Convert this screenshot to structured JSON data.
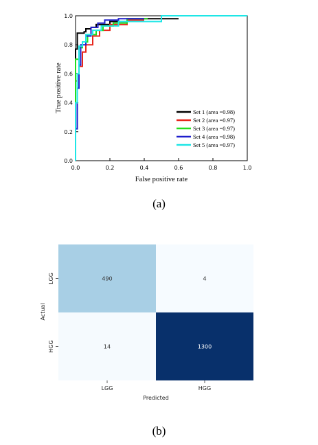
{
  "figures": [
    {
      "caption": "(a)",
      "chart_data": {
        "type": "line",
        "xlabel": "False positive rate",
        "ylabel": "True positive rate",
        "xlim": [
          0.0,
          1.0
        ],
        "ylim": [
          0.0,
          1.0
        ],
        "xticks": [
          "0.0",
          "0.2",
          "0.4",
          "0.6",
          "0.8",
          "1.0"
        ],
        "yticks": [
          "0.0",
          "0.2",
          "0.4",
          "0.6",
          "0.8",
          "1.0"
        ],
        "grid": false,
        "legend_position": "bottom-right",
        "series": [
          {
            "name": "Set 1 (area =0.98)",
            "color": "#000000",
            "x": [
              0.0,
              0.0,
              0.01,
              0.01,
              0.05,
              0.05,
              0.06,
              0.06,
              0.09,
              0.09,
              0.12,
              0.12,
              0.2,
              0.2,
              0.3,
              0.3,
              0.6
            ],
            "y": [
              0.0,
              0.77,
              0.77,
              0.88,
              0.88,
              0.89,
              0.89,
              0.91,
              0.91,
              0.92,
              0.92,
              0.94,
              0.94,
              0.96,
              0.96,
              0.98,
              0.98
            ]
          },
          {
            "name": "Set 2 (area =0.97)",
            "color": "#e8261c",
            "x": [
              0.0,
              0.0,
              0.01,
              0.01,
              0.02,
              0.02,
              0.04,
              0.04,
              0.06,
              0.06,
              0.1,
              0.1,
              0.14,
              0.14,
              0.2,
              0.2,
              0.3,
              0.3,
              0.4
            ],
            "y": [
              0.0,
              0.55,
              0.55,
              0.6,
              0.6,
              0.65,
              0.65,
              0.75,
              0.75,
              0.8,
              0.8,
              0.86,
              0.86,
              0.9,
              0.9,
              0.94,
              0.94,
              0.97,
              0.97
            ]
          },
          {
            "name": "Set 3 (area =0.97)",
            "color": "#22dd1e",
            "x": [
              0.0,
              0.0,
              0.02,
              0.02,
              0.04,
              0.04,
              0.07,
              0.07,
              0.12,
              0.12,
              0.16,
              0.16,
              0.22,
              0.22,
              0.3,
              0.3,
              0.42
            ],
            "y": [
              0.0,
              0.7,
              0.7,
              0.78,
              0.78,
              0.82,
              0.82,
              0.87,
              0.87,
              0.9,
              0.9,
              0.93,
              0.93,
              0.95,
              0.95,
              0.98,
              0.98
            ]
          },
          {
            "name": "Set 4 (area =0.98)",
            "color": "#1e1ecc",
            "x": [
              0.0,
              0.0,
              0.01,
              0.01,
              0.02,
              0.02,
              0.03,
              0.03,
              0.06,
              0.06,
              0.09,
              0.09,
              0.13,
              0.13,
              0.17,
              0.17,
              0.25,
              0.25,
              0.4
            ],
            "y": [
              0.0,
              0.22,
              0.22,
              0.5,
              0.5,
              0.66,
              0.66,
              0.8,
              0.8,
              0.86,
              0.86,
              0.92,
              0.92,
              0.95,
              0.95,
              0.97,
              0.97,
              0.98,
              0.98
            ]
          },
          {
            "name": "Set 5 (area =0.97)",
            "color": "#1ee6e6",
            "x": [
              0.0,
              0.0,
              0.01,
              0.01,
              0.02,
              0.02,
              0.04,
              0.04,
              0.06,
              0.06,
              0.1,
              0.1,
              0.15,
              0.15,
              0.25,
              0.25,
              0.5,
              0.5,
              1.0
            ],
            "y": [
              0.0,
              0.4,
              0.4,
              0.6,
              0.6,
              0.79,
              0.79,
              0.82,
              0.82,
              0.87,
              0.87,
              0.9,
              0.9,
              0.93,
              0.93,
              0.96,
              0.96,
              1.0,
              1.0
            ]
          }
        ]
      }
    },
    {
      "caption": "(b)",
      "chart_data": {
        "type": "heatmap",
        "xlabel": "Predicted",
        "ylabel": "Actual",
        "x_categories": [
          "LGG",
          "HGG"
        ],
        "y_categories": [
          "LGG",
          "HGG"
        ],
        "values": [
          [
            490,
            4
          ],
          [
            14,
            1300
          ]
        ],
        "colors": {
          "low": "#f7fbff",
          "mid": "#a3cce3",
          "high": "#08306b",
          "text_dark": "#333333",
          "text_light": "#ffffff"
        }
      }
    }
  ]
}
